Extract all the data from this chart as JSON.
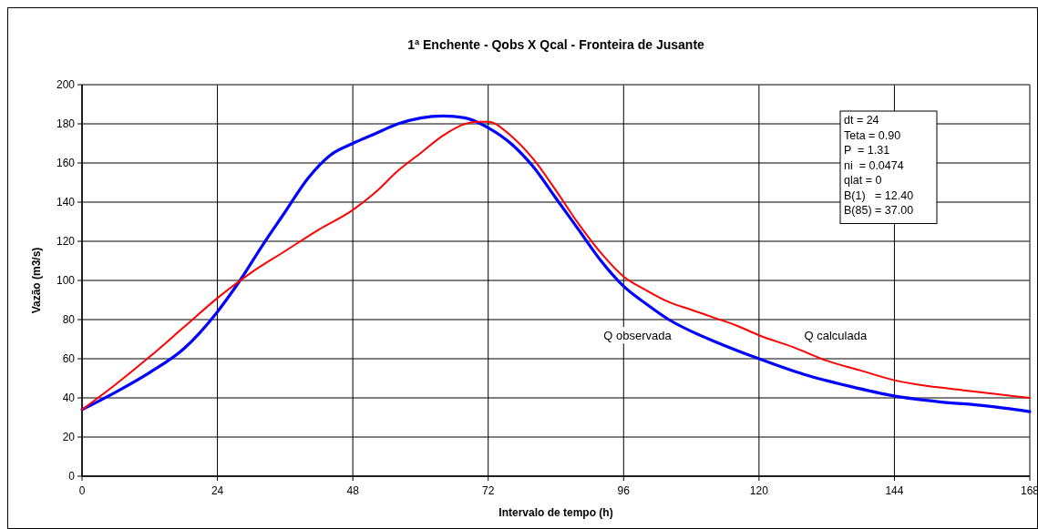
{
  "chart_data": {
    "type": "line",
    "title": "1ª Enchente - Qobs X Qcal - Fronteira de Jusante",
    "xlabel": "Intervalo de tempo (h)",
    "ylabel": "Vazão (m3/s)",
    "xlim": [
      0,
      168
    ],
    "xticks": [
      0,
      24,
      48,
      72,
      96,
      120,
      144,
      168
    ],
    "ylim": [
      0,
      200
    ],
    "yticks": [
      0,
      20,
      40,
      60,
      80,
      100,
      120,
      140,
      160,
      180,
      200
    ],
    "grid": true,
    "marker": "none",
    "line_style": "solid",
    "series": [
      {
        "name": "Q observada",
        "color": "#0000ff",
        "x": [
          0,
          6,
          12,
          18,
          24,
          28,
          32,
          36,
          40,
          44,
          48,
          52,
          56,
          60,
          64,
          68,
          72,
          76,
          80,
          84,
          88,
          92,
          96,
          100,
          104,
          108,
          112,
          120,
          128,
          136,
          144,
          152,
          160,
          168
        ],
        "values": [
          34,
          43,
          53,
          65,
          84,
          100,
          118,
          135,
          152,
          164,
          170,
          175,
          180,
          183,
          184,
          183,
          178,
          170,
          158,
          142,
          126,
          110,
          97,
          88,
          80,
          74,
          69,
          60,
          52,
          46,
          41,
          38,
          36,
          33
        ]
      },
      {
        "name": "Q calculada",
        "color": "#ff0000",
        "x": [
          0,
          6,
          12,
          18,
          24,
          30,
          36,
          42,
          48,
          52,
          56,
          60,
          64,
          68,
          70,
          72,
          76,
          80,
          84,
          88,
          92,
          96,
          100,
          104,
          108,
          112,
          116,
          120,
          126,
          132,
          138,
          144,
          150,
          156,
          162,
          168
        ],
        "values": [
          34,
          47,
          61,
          76,
          91,
          104,
          115,
          126,
          136,
          145,
          156,
          165,
          174,
          180,
          181,
          181,
          174,
          162,
          146,
          129,
          114,
          102,
          95,
          89,
          85,
          81,
          77,
          72,
          66,
          59,
          54,
          49,
          46,
          44,
          42,
          40
        ]
      }
    ],
    "annotations": [
      "dt = 24",
      "Teta = 0.90",
      "P  = 1.31",
      "ni  = 0.0474",
      "qlat = 0",
      "B(1)   = 12.40",
      "B(85) = 37.00"
    ]
  }
}
